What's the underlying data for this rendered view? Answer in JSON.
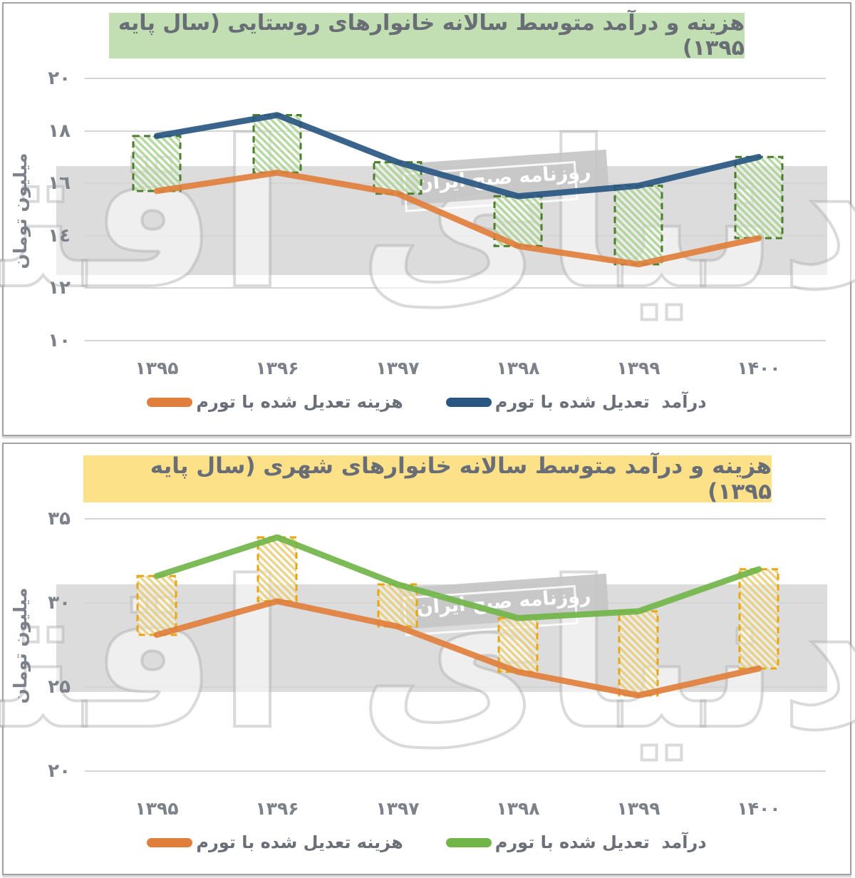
{
  "page": {
    "watermark_text": "دنیای اقتصاد",
    "watermark_tag": "روزنامه صبح ایران"
  },
  "chart_data": [
    {
      "type": "line",
      "title": "هزینه و درآمد متوسط سالانه خانوارهای روستایی (سال پایه ۱۳۹۵)",
      "title_highlight": "#c1dfb2",
      "ylabel": "میلیون تومان",
      "categories": [
        "۱۳۹۵",
        "۱۳۹۶",
        "۱۳۹۷",
        "۱۳۹۸",
        "۱۳۹۹",
        "۱۴۰۰"
      ],
      "y_ticks": [
        {
          "label": "۲۰",
          "value": 20
        },
        {
          "label": "۱۸",
          "value": 18
        },
        {
          "label": "۱٦",
          "value": 16
        },
        {
          "label": "۱٤",
          "value": 14
        },
        {
          "label": "۱۲",
          "value": 12
        },
        {
          "label": "۱۰",
          "value": 10
        }
      ],
      "ylim": [
        10,
        20
      ],
      "grid": true,
      "legend_position": "bottom",
      "series": [
        {
          "name": "درآمد  تعدیل شده با تورم",
          "role": "income",
          "color": "#295782",
          "values": [
            17.8,
            18.6,
            16.8,
            15.5,
            15.9,
            17.0
          ]
        },
        {
          "name": "هزینه تعدیل شده با تورم",
          "role": "expense",
          "color": "#e07f3c",
          "values": [
            15.7,
            16.4,
            15.6,
            13.6,
            12.9,
            13.9
          ]
        }
      ],
      "gap_box": {
        "stroke": "#4c7d31",
        "hatch": "#a5cf8a"
      },
      "band_values": [
        12.5,
        16.65
      ]
    },
    {
      "type": "line",
      "title": "هزینه و درآمد متوسط سالانه خانوارهای شهری (سال پایه ۱۳۹۵)",
      "title_highlight": "#fce189",
      "ylabel": "میلیون تومان",
      "categories": [
        "۱۳۹۵",
        "۱۳۹۶",
        "۱۳۹۷",
        "۱۳۹۸",
        "۱۳۹۹",
        "۱۴۰۰"
      ],
      "y_ticks": [
        {
          "label": "۳۵",
          "value": 35
        },
        {
          "label": "۳۰",
          "value": 30
        },
        {
          "label": "۲۵",
          "value": 25
        },
        {
          "label": "۲۰",
          "value": 20
        }
      ],
      "ylim": [
        20,
        35
      ],
      "grid": true,
      "legend_position": "bottom",
      "series": [
        {
          "name": "درآمد  تعدیل شده با تورم",
          "role": "income",
          "color": "#71b549",
          "values": [
            31.6,
            33.9,
            31.1,
            29.1,
            29.5,
            32.0
          ]
        },
        {
          "name": "هزینه تعدیل شده با تورم",
          "role": "expense",
          "color": "#e07f3c",
          "values": [
            28.1,
            30.1,
            28.6,
            25.9,
            24.5,
            26.1
          ]
        }
      ],
      "gap_box": {
        "stroke": "#e7a616",
        "hatch": "#e6c96e"
      },
      "band_values": [
        24.7,
        31.1
      ]
    }
  ]
}
